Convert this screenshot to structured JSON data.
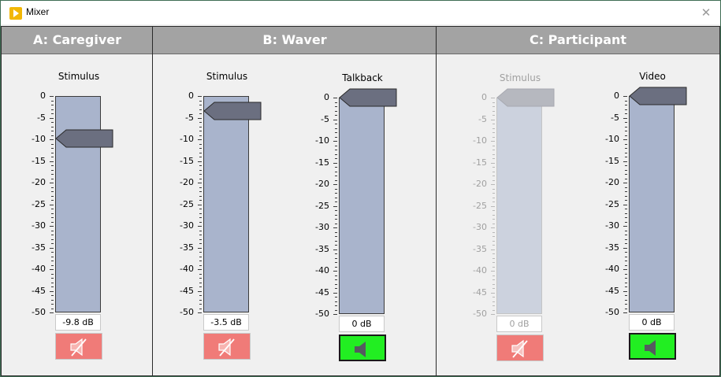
{
  "window": {
    "title": "Mixer",
    "app_icon": "play-icon",
    "close_icon": "close-icon",
    "close_glyph": "✕"
  },
  "scale": {
    "ticks": [
      "0",
      "-5",
      "-10",
      "-15",
      "-20",
      "-25",
      "-30",
      "-35",
      "-40",
      "-45",
      "-50"
    ]
  },
  "colors": {
    "header_bg": "#a3a3a3",
    "track": "#a9b4cc",
    "thumb": "#6b6f80",
    "muted": "#f07b78",
    "unmuted": "#22ee22"
  },
  "panels": [
    {
      "title": "A: Caregiver",
      "channels": [
        {
          "label": "Stimulus",
          "db": "-9.8 dB",
          "value": -9.8,
          "muted": true,
          "enabled": true
        }
      ]
    },
    {
      "title": "B: Waver",
      "channels": [
        {
          "label": "Stimulus",
          "db": "-3.5 dB",
          "value": -3.5,
          "muted": true,
          "enabled": true
        },
        {
          "label": "Talkback",
          "db": "0 dB",
          "value": 0,
          "muted": false,
          "enabled": true
        }
      ]
    },
    {
      "title": "C: Participant",
      "channels": [
        {
          "label": "Stimulus",
          "db": "0 dB",
          "value": 0,
          "muted": true,
          "enabled": false
        },
        {
          "label": "Video",
          "db": "0 dB",
          "value": 0,
          "muted": false,
          "enabled": true
        }
      ]
    }
  ]
}
